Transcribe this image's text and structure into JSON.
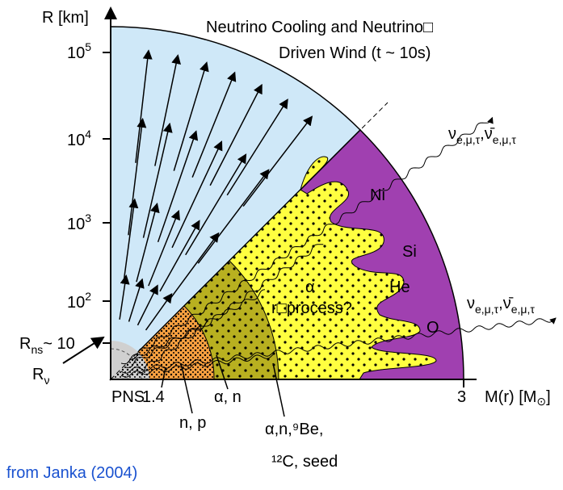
{
  "title": [
    "Neutrino Cooling and Neutrino□",
    "Driven Wind  (t ~ 10s)"
  ],
  "y_axis": {
    "label": "R [km]",
    "ticks": [
      {
        "base": "10",
        "exp": "5"
      },
      {
        "base": "10",
        "exp": "4"
      },
      {
        "base": "10",
        "exp": "3"
      },
      {
        "base": "10",
        "exp": "2"
      }
    ]
  },
  "radius_labels": {
    "ns": {
      "main": "R",
      "sub": "ns",
      "suffix": "~ 10"
    },
    "nu": {
      "main": "R",
      "sub": "ν"
    }
  },
  "x_axis": {
    "label": "M(r) [M",
    "label_sub": "⊙",
    "label_end": "]",
    "ticks": [
      "PNS",
      "1.4",
      "3"
    ]
  },
  "shell_labels": [
    "n, p",
    "α, n",
    "α,n,⁹Be,",
    "¹²C, seed"
  ],
  "elements": [
    "Ni",
    "Si",
    "He",
    "O"
  ],
  "region_labels": [
    "α",
    "r□process?"
  ],
  "neutrino_label": {
    "nu": "ν",
    "bar": "ν̄",
    "flavors": "e,μ,τ",
    "sep": ","
  },
  "credit": "from Janka (2004)"
}
